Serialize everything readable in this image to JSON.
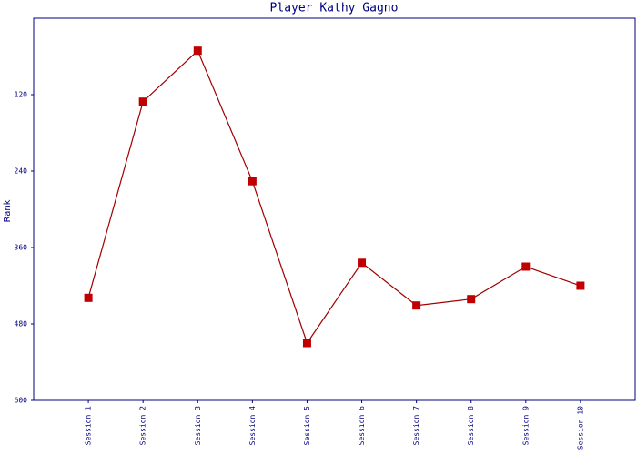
{
  "chart_data": {
    "type": "line",
    "title": "Player Kathy Gagno",
    "y_label": "Rank",
    "categories": [
      "Session 1",
      "Session 2",
      "Session 3",
      "Session 4",
      "Session 5",
      "Session 6",
      "Session 7",
      "Session 8",
      "Session 9",
      "Session 10"
    ],
    "series": [
      {
        "name": "Kathy Gagno",
        "color": "#a00000",
        "values": [
          439,
          131,
          51,
          256,
          510,
          384,
          451,
          441,
          390,
          420
        ]
      }
    ],
    "ylim": [
      0,
      600
    ],
    "yticks": [
      120,
      240,
      360,
      480,
      600
    ],
    "y_inverted": true,
    "marker_color": "#c00000"
  }
}
